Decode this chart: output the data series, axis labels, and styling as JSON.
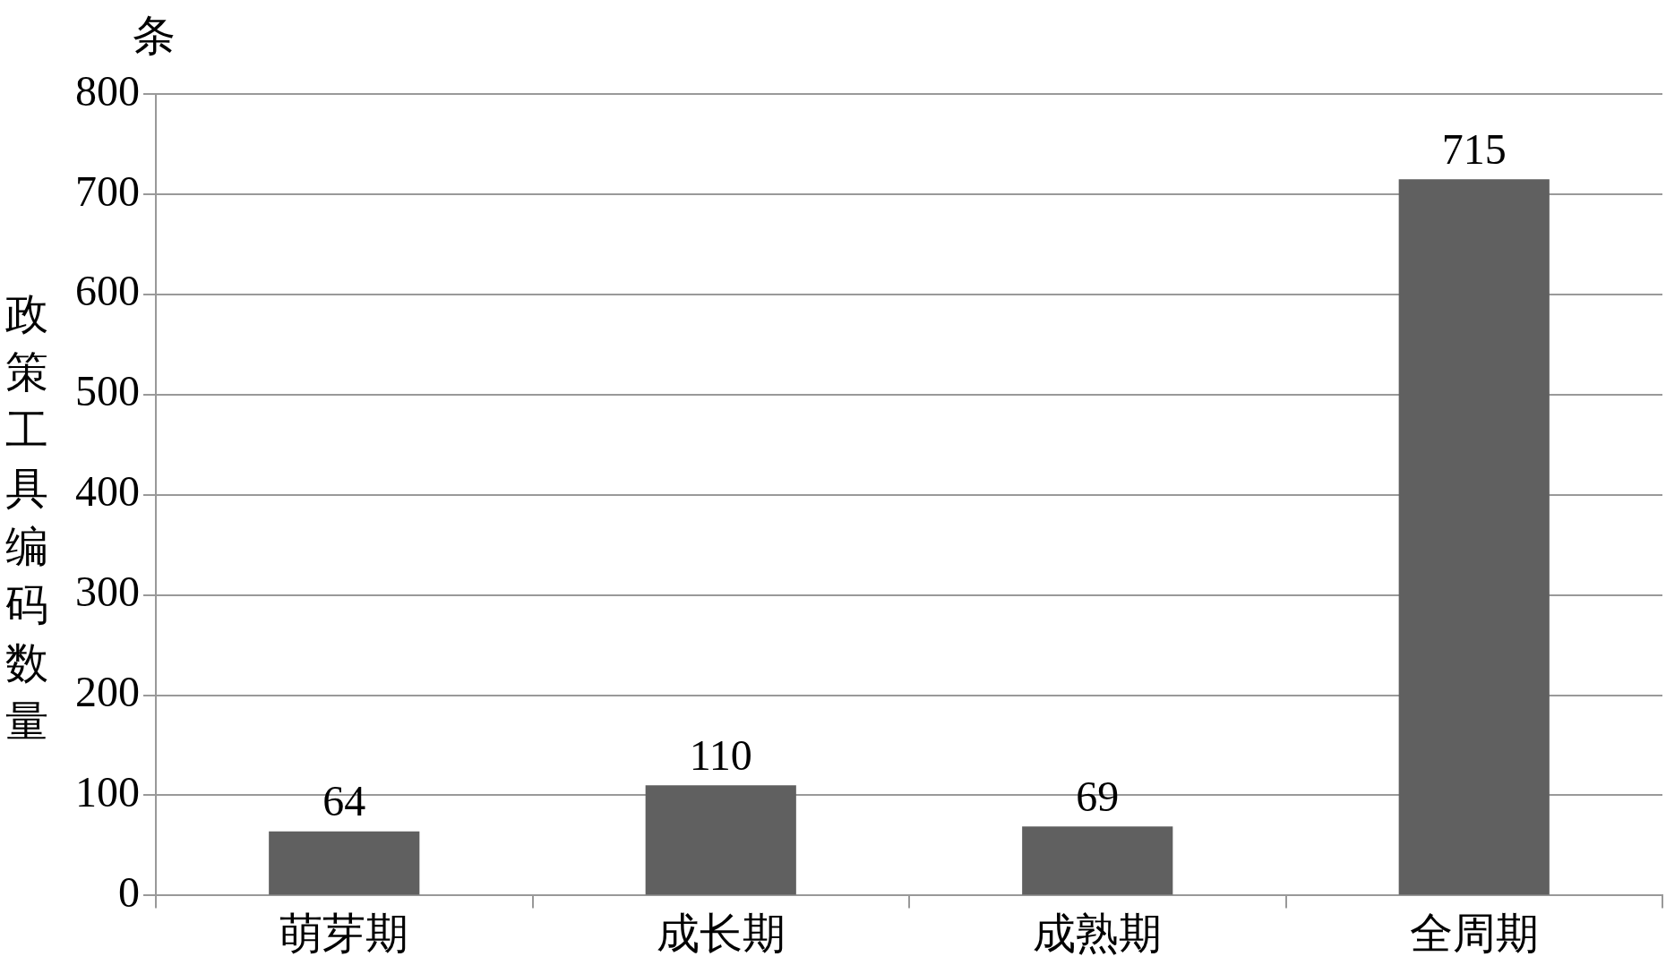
{
  "chart_data": {
    "type": "bar",
    "ylabel": "政策工具编码数量",
    "annotations": [
      "条"
    ],
    "categories": [
      "萌芽期",
      "成长期",
      "成熟期",
      "全周期"
    ],
    "values": [
      64,
      110,
      69,
      715
    ],
    "color": "#606060",
    "ylim": [
      0,
      800
    ],
    "yticks": [
      0,
      100,
      200,
      300,
      400,
      500,
      600,
      700,
      800
    ],
    "grid": "y",
    "data_labels": true,
    "legend": false
  }
}
